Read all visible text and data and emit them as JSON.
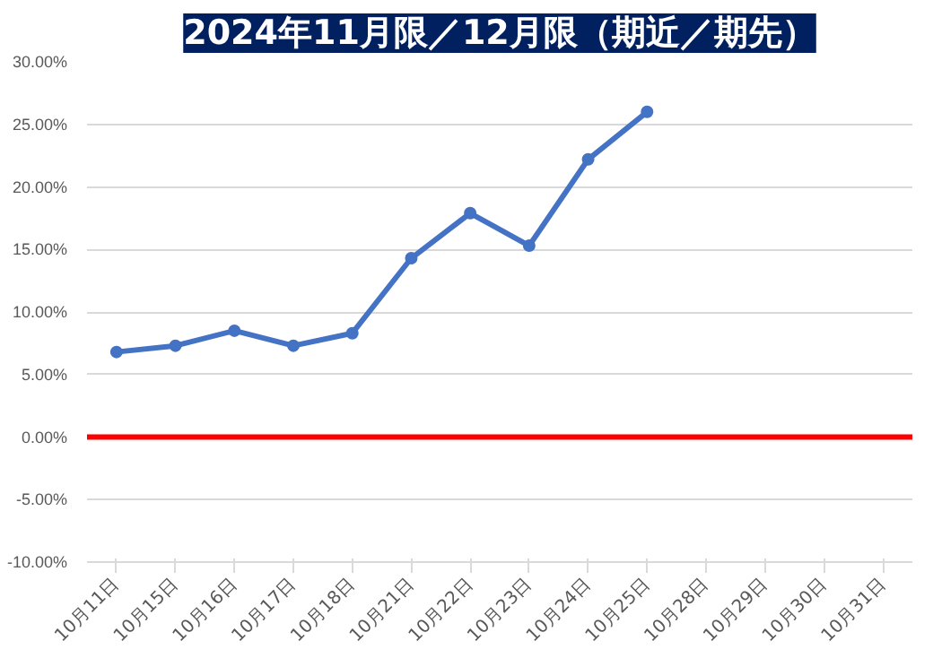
{
  "chart_data": {
    "type": "line",
    "title": "2024年11月限／12月限（期近／期先）",
    "categories": [
      "10月11日",
      "10月15日",
      "10月16日",
      "10月17日",
      "10月18日",
      "10月21日",
      "10月22日",
      "10月23日",
      "10月24日",
      "10月25日",
      "10月28日",
      "10月29日",
      "10月30日",
      "10月31日"
    ],
    "series": [
      {
        "color": "#4472c4",
        "values": [
          6.8,
          7.3,
          8.5,
          7.3,
          8.3,
          14.3,
          17.9,
          15.3,
          22.2,
          26.0,
          null,
          null,
          null,
          null
        ]
      }
    ],
    "ylim": [
      -10,
      30
    ],
    "yticks": [
      {
        "value": -10,
        "label": "-10.00%"
      },
      {
        "value": -5,
        "label": "-5.00%"
      },
      {
        "value": 0,
        "label": "0.00%"
      },
      {
        "value": 5,
        "label": "5.00%"
      },
      {
        "value": 10,
        "label": "10.00%"
      },
      {
        "value": 15,
        "label": "15.00%"
      },
      {
        "value": 20,
        "label": "20.00%"
      },
      {
        "value": 25,
        "label": "25.00%"
      },
      {
        "value": 30,
        "label": "30.00%"
      }
    ],
    "ref_lines": [
      {
        "axis": "y",
        "value": 0,
        "label": null,
        "color": "#ff0000"
      }
    ],
    "grid": "y",
    "marker": "circle",
    "line_style": "solid"
  }
}
